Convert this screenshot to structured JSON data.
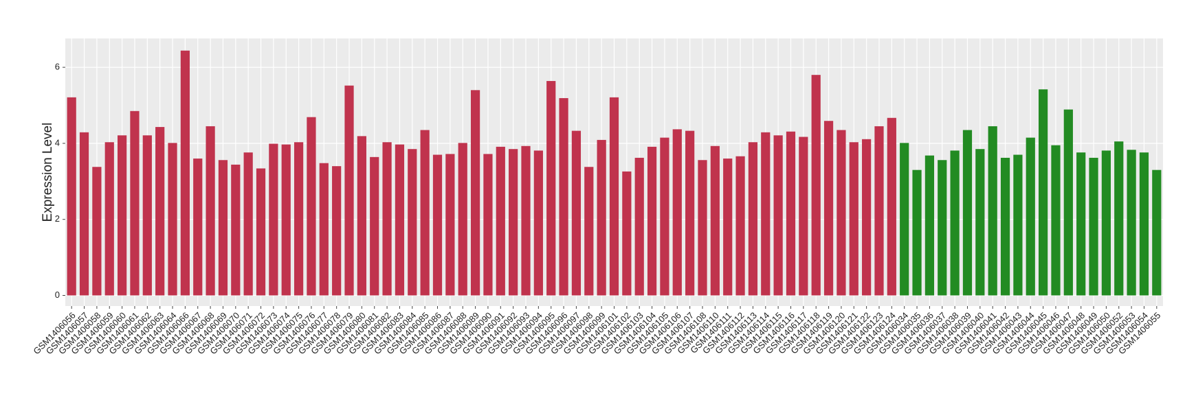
{
  "chart_data": {
    "type": "bar",
    "y_label": "Expression Level",
    "categories": [
      "GSM1406056",
      "GSM1406057",
      "GSM1406058",
      "GSM1406059",
      "GSM1406060",
      "GSM1406061",
      "GSM1406062",
      "GSM1406063",
      "GSM1406064",
      "GSM1406066",
      "GSM1406067",
      "GSM1406068",
      "GSM1406069",
      "GSM1406070",
      "GSM1406071",
      "GSM1406072",
      "GSM1406073",
      "GSM1406074",
      "GSM1406075",
      "GSM1406076",
      "GSM1406077",
      "GSM1406078",
      "GSM1406079",
      "GSM1406080",
      "GSM1406081",
      "GSM1406082",
      "GSM1406083",
      "GSM1406084",
      "GSM1406085",
      "GSM1406086",
      "GSM1406087",
      "GSM1406088",
      "GSM1406089",
      "GSM1406090",
      "GSM1406091",
      "GSM1406092",
      "GSM1406093",
      "GSM1406094",
      "GSM1406095",
      "GSM1406096",
      "GSM1406097",
      "GSM1406098",
      "GSM1406099",
      "GSM1406101",
      "GSM1406102",
      "GSM1406103",
      "GSM1406104",
      "GSM1406105",
      "GSM1406106",
      "GSM1406107",
      "GSM1406108",
      "GSM1406110",
      "GSM1406111",
      "GSM1406112",
      "GSM1406113",
      "GSM1406114",
      "GSM1406115",
      "GSM1406116",
      "GSM1406117",
      "GSM1406118",
      "GSM1406119",
      "GSM1406120",
      "GSM1406121",
      "GSM1406122",
      "GSM1406123",
      "GSM1406124",
      "GSM1406034",
      "GSM1406035",
      "GSM1406036",
      "GSM1406037",
      "GSM1406038",
      "GSM1406039",
      "GSM1406040",
      "GSM1406041",
      "GSM1406042",
      "GSM1406043",
      "GSM1406044",
      "GSM1406045",
      "GSM1406046",
      "GSM1406047",
      "GSM1406048",
      "GSM1406049",
      "GSM1406050",
      "GSM1406052",
      "GSM1406053",
      "GSM1406054",
      "GSM1406055"
    ],
    "values": [
      5.21,
      4.29,
      3.38,
      4.03,
      4.21,
      4.85,
      4.21,
      4.43,
      4.01,
      6.44,
      3.6,
      4.45,
      3.56,
      3.44,
      3.76,
      3.34,
      3.99,
      3.97,
      4.03,
      4.69,
      3.48,
      3.4,
      5.52,
      4.19,
      3.64,
      4.03,
      3.97,
      3.85,
      4.35,
      3.7,
      3.72,
      4.01,
      5.4,
      3.72,
      3.91,
      3.85,
      3.93,
      3.81,
      5.64,
      5.19,
      4.33,
      3.38,
      4.09,
      5.21,
      3.26,
      3.62,
      3.91,
      4.15,
      4.37,
      4.33,
      3.56,
      3.93,
      3.6,
      3.66,
      4.03,
      4.29,
      4.21,
      4.31,
      4.17,
      5.8,
      4.59,
      4.35,
      4.03,
      4.11,
      4.45,
      4.67,
      4.01,
      3.3,
      3.68,
      3.56,
      3.81,
      4.35,
      3.85,
      4.45,
      3.62,
      3.7,
      4.15,
      5.42,
      3.95,
      4.89,
      3.76,
      3.62,
      3.81,
      4.05,
      3.83,
      3.76,
      3.3
    ],
    "colors": [
      "#c0334d",
      "#c0334d",
      "#c0334d",
      "#c0334d",
      "#c0334d",
      "#c0334d",
      "#c0334d",
      "#c0334d",
      "#c0334d",
      "#c0334d",
      "#c0334d",
      "#c0334d",
      "#c0334d",
      "#c0334d",
      "#c0334d",
      "#c0334d",
      "#c0334d",
      "#c0334d",
      "#c0334d",
      "#c0334d",
      "#c0334d",
      "#c0334d",
      "#c0334d",
      "#c0334d",
      "#c0334d",
      "#c0334d",
      "#c0334d",
      "#c0334d",
      "#c0334d",
      "#c0334d",
      "#c0334d",
      "#c0334d",
      "#c0334d",
      "#c0334d",
      "#c0334d",
      "#c0334d",
      "#c0334d",
      "#c0334d",
      "#c0334d",
      "#c0334d",
      "#c0334d",
      "#c0334d",
      "#c0334d",
      "#c0334d",
      "#c0334d",
      "#c0334d",
      "#c0334d",
      "#c0334d",
      "#c0334d",
      "#c0334d",
      "#c0334d",
      "#c0334d",
      "#c0334d",
      "#c0334d",
      "#c0334d",
      "#c0334d",
      "#c0334d",
      "#c0334d",
      "#c0334d",
      "#c0334d",
      "#c0334d",
      "#c0334d",
      "#c0334d",
      "#c0334d",
      "#c0334d",
      "#c0334d",
      "#228b22",
      "#228b22",
      "#228b22",
      "#228b22",
      "#228b22",
      "#228b22",
      "#228b22",
      "#228b22",
      "#228b22",
      "#228b22",
      "#228b22",
      "#228b22",
      "#228b22",
      "#228b22",
      "#228b22",
      "#228b22",
      "#228b22",
      "#228b22",
      "#228b22",
      "#228b22",
      "#228b22"
    ],
    "ylim": [
      -0.28,
      6.76
    ],
    "yticks": [
      0,
      2,
      4,
      6
    ],
    "grid": true
  }
}
